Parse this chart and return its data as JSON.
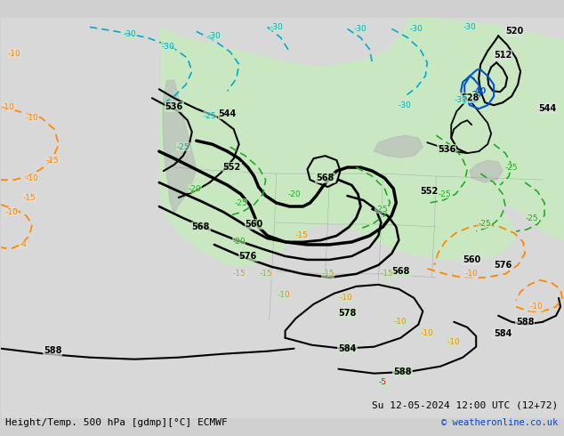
{
  "title_left": "Height/Temp. 500 hPa [gdmp][°C] ECMWF",
  "title_right": "Su 12-05-2024 12:00 UTC (12+72)",
  "copyright": "© weatheronline.co.uk",
  "bg_color": "#d0d0d0",
  "map_bg_color": "#e0e0e0",
  "green_fill_color": "#c8eac0",
  "figsize": [
    6.34,
    4.9
  ],
  "dpi": 100
}
